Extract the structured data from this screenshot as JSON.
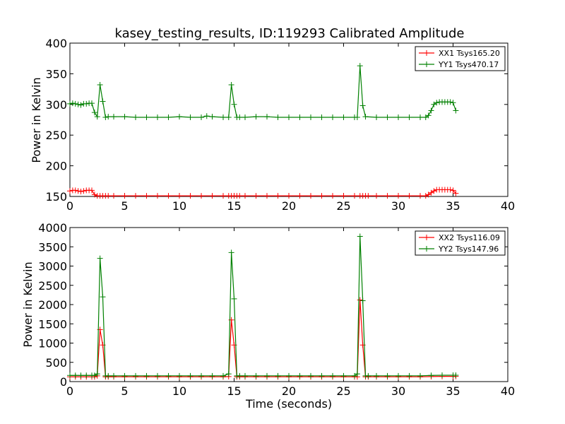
{
  "colors": {
    "xx": "#ff0000",
    "yy": "#008000",
    "axis": "#000000",
    "background": "#ffffff"
  },
  "chart_data": [
    {
      "type": "line",
      "title": "kasey_testing_results, ID:119293 Calibrated Amplitude",
      "xlabel": "",
      "ylabel": "Power in Kelvin",
      "xlim": [
        0,
        40
      ],
      "ylim": [
        150,
        400
      ],
      "xticks": [
        0,
        5,
        10,
        15,
        20,
        25,
        30,
        35,
        40
      ],
      "yticks": [
        150,
        200,
        250,
        300,
        350,
        400
      ],
      "legend_position": "top-right",
      "marker": "+",
      "grid": false,
      "series": [
        {
          "name": "XX1 Tsys165.20",
          "color": "#ff0000",
          "points": [
            [
              0.0,
              159
            ],
            [
              0.25,
              160
            ],
            [
              0.5,
              160
            ],
            [
              0.75,
              159
            ],
            [
              1.0,
              158
            ],
            [
              1.25,
              159
            ],
            [
              1.5,
              160
            ],
            [
              1.75,
              160
            ],
            [
              2.0,
              160
            ],
            [
              2.25,
              153
            ],
            [
              2.5,
              151
            ],
            [
              2.75,
              151
            ],
            [
              3.0,
              151
            ],
            [
              3.25,
              151
            ],
            [
              3.5,
              151
            ],
            [
              4.0,
              151
            ],
            [
              5.0,
              151
            ],
            [
              6.0,
              151
            ],
            [
              7.0,
              151
            ],
            [
              8.0,
              151
            ],
            [
              9.0,
              151
            ],
            [
              10.0,
              151
            ],
            [
              11.0,
              151
            ],
            [
              12.0,
              151
            ],
            [
              13.0,
              151
            ],
            [
              14.0,
              151
            ],
            [
              14.5,
              151
            ],
            [
              14.75,
              151
            ],
            [
              15.0,
              151
            ],
            [
              15.25,
              151
            ],
            [
              15.5,
              151
            ],
            [
              16.0,
              151
            ],
            [
              17.0,
              151
            ],
            [
              18.0,
              151
            ],
            [
              19.0,
              151
            ],
            [
              20.0,
              151
            ],
            [
              21.0,
              151
            ],
            [
              22.0,
              151
            ],
            [
              23.0,
              151
            ],
            [
              24.0,
              151
            ],
            [
              25.0,
              151
            ],
            [
              26.0,
              151
            ],
            [
              26.5,
              151
            ],
            [
              26.75,
              151
            ],
            [
              27.0,
              151
            ],
            [
              27.25,
              151
            ],
            [
              28.0,
              151
            ],
            [
              29.0,
              151
            ],
            [
              30.0,
              151
            ],
            [
              31.0,
              151
            ],
            [
              32.0,
              151
            ],
            [
              32.5,
              151
            ],
            [
              32.75,
              153
            ],
            [
              33.0,
              156
            ],
            [
              33.25,
              159
            ],
            [
              33.5,
              161
            ],
            [
              33.75,
              161
            ],
            [
              34.0,
              161
            ],
            [
              34.25,
              161
            ],
            [
              34.5,
              161
            ],
            [
              34.75,
              161
            ],
            [
              35.0,
              160
            ],
            [
              35.25,
              155
            ]
          ]
        },
        {
          "name": "YY1 Tsys470.17",
          "color": "#008000",
          "points": [
            [
              0.0,
              301
            ],
            [
              0.25,
              302
            ],
            [
              0.5,
              301
            ],
            [
              0.75,
              300
            ],
            [
              1.0,
              299
            ],
            [
              1.25,
              301
            ],
            [
              1.5,
              301
            ],
            [
              1.75,
              302
            ],
            [
              2.0,
              302
            ],
            [
              2.25,
              287
            ],
            [
              2.5,
              280
            ],
            [
              2.75,
              332
            ],
            [
              3.0,
              305
            ],
            [
              3.25,
              279
            ],
            [
              3.5,
              280
            ],
            [
              4.0,
              280
            ],
            [
              5.0,
              280
            ],
            [
              6.0,
              279
            ],
            [
              7.0,
              279
            ],
            [
              8.0,
              279
            ],
            [
              9.0,
              279
            ],
            [
              10.0,
              280
            ],
            [
              11.0,
              279
            ],
            [
              12.0,
              279
            ],
            [
              12.5,
              281
            ],
            [
              13.0,
              280
            ],
            [
              14.0,
              279
            ],
            [
              14.5,
              279
            ],
            [
              14.75,
              332
            ],
            [
              15.0,
              300
            ],
            [
              15.25,
              279
            ],
            [
              15.5,
              279
            ],
            [
              16.0,
              279
            ],
            [
              17.0,
              280
            ],
            [
              18.0,
              280
            ],
            [
              19.0,
              279
            ],
            [
              20.0,
              279
            ],
            [
              21.0,
              279
            ],
            [
              22.0,
              279
            ],
            [
              23.0,
              279
            ],
            [
              24.0,
              279
            ],
            [
              25.0,
              279
            ],
            [
              26.0,
              279
            ],
            [
              26.25,
              279
            ],
            [
              26.5,
              363
            ],
            [
              26.75,
              298
            ],
            [
              27.0,
              280
            ],
            [
              28.0,
              279
            ],
            [
              29.0,
              279
            ],
            [
              30.0,
              279
            ],
            [
              31.0,
              279
            ],
            [
              32.0,
              279
            ],
            [
              32.5,
              279
            ],
            [
              32.75,
              282
            ],
            [
              33.0,
              290
            ],
            [
              33.25,
              300
            ],
            [
              33.5,
              303
            ],
            [
              33.75,
              304
            ],
            [
              34.0,
              304
            ],
            [
              34.25,
              304
            ],
            [
              34.5,
              304
            ],
            [
              34.75,
              304
            ],
            [
              35.0,
              303
            ],
            [
              35.25,
              290
            ]
          ]
        }
      ]
    },
    {
      "type": "line",
      "title": "",
      "xlabel": "Time (seconds)",
      "ylabel": "Power in Kelvin",
      "xlim": [
        0,
        40
      ],
      "ylim": [
        0,
        4000
      ],
      "xticks": [
        0,
        5,
        10,
        15,
        20,
        25,
        30,
        35,
        40
      ],
      "yticks": [
        0,
        500,
        1000,
        1500,
        2000,
        2500,
        3000,
        3500,
        4000
      ],
      "legend_position": "top-right",
      "marker": "+",
      "grid": false,
      "series": [
        {
          "name": "XX2 Tsys116.09",
          "color": "#ff0000",
          "points": [
            [
              0.0,
              125
            ],
            [
              0.5,
              125
            ],
            [
              1.0,
              125
            ],
            [
              1.5,
              125
            ],
            [
              2.0,
              125
            ],
            [
              2.25,
              125
            ],
            [
              2.5,
              150
            ],
            [
              2.75,
              1350
            ],
            [
              3.0,
              950
            ],
            [
              3.25,
              125
            ],
            [
              3.5,
              125
            ],
            [
              4.0,
              125
            ],
            [
              5.0,
              125
            ],
            [
              6.0,
              125
            ],
            [
              7.0,
              125
            ],
            [
              8.0,
              125
            ],
            [
              9.0,
              125
            ],
            [
              10.0,
              125
            ],
            [
              11.0,
              125
            ],
            [
              12.0,
              125
            ],
            [
              13.0,
              125
            ],
            [
              14.0,
              125
            ],
            [
              14.5,
              130
            ],
            [
              14.75,
              1600
            ],
            [
              15.0,
              950
            ],
            [
              15.25,
              125
            ],
            [
              15.5,
              125
            ],
            [
              16.0,
              125
            ],
            [
              17.0,
              125
            ],
            [
              18.0,
              125
            ],
            [
              19.0,
              125
            ],
            [
              20.0,
              125
            ],
            [
              21.0,
              125
            ],
            [
              22.0,
              125
            ],
            [
              23.0,
              125
            ],
            [
              24.0,
              125
            ],
            [
              25.0,
              125
            ],
            [
              26.0,
              125
            ],
            [
              26.25,
              125
            ],
            [
              26.5,
              2120
            ],
            [
              26.75,
              950
            ],
            [
              27.0,
              125
            ],
            [
              27.25,
              125
            ],
            [
              28.0,
              125
            ],
            [
              29.0,
              125
            ],
            [
              30.0,
              125
            ],
            [
              31.0,
              125
            ],
            [
              32.0,
              125
            ],
            [
              33.0,
              130
            ],
            [
              34.0,
              135
            ],
            [
              35.0,
              135
            ],
            [
              35.25,
              135
            ]
          ]
        },
        {
          "name": "YY2 Tsys147.96",
          "color": "#008000",
          "points": [
            [
              0.0,
              160
            ],
            [
              0.5,
              160
            ],
            [
              1.0,
              160
            ],
            [
              1.5,
              160
            ],
            [
              2.0,
              160
            ],
            [
              2.25,
              160
            ],
            [
              2.5,
              200
            ],
            [
              2.75,
              3200
            ],
            [
              3.0,
              2200
            ],
            [
              3.25,
              150
            ],
            [
              3.5,
              150
            ],
            [
              4.0,
              150
            ],
            [
              5.0,
              150
            ],
            [
              6.0,
              150
            ],
            [
              7.0,
              150
            ],
            [
              8.0,
              150
            ],
            [
              9.0,
              150
            ],
            [
              10.0,
              150
            ],
            [
              11.0,
              150
            ],
            [
              12.0,
              150
            ],
            [
              13.0,
              150
            ],
            [
              14.0,
              150
            ],
            [
              14.5,
              200
            ],
            [
              14.75,
              3350
            ],
            [
              15.0,
              2150
            ],
            [
              15.25,
              150
            ],
            [
              15.5,
              150
            ],
            [
              16.0,
              150
            ],
            [
              17.0,
              150
            ],
            [
              18.0,
              150
            ],
            [
              19.0,
              150
            ],
            [
              20.0,
              150
            ],
            [
              21.0,
              150
            ],
            [
              22.0,
              150
            ],
            [
              23.0,
              150
            ],
            [
              24.0,
              150
            ],
            [
              25.0,
              150
            ],
            [
              26.0,
              150
            ],
            [
              26.25,
              200
            ],
            [
              26.5,
              3770
            ],
            [
              26.75,
              2100
            ],
            [
              27.0,
              150
            ],
            [
              27.25,
              150
            ],
            [
              28.0,
              150
            ],
            [
              29.0,
              150
            ],
            [
              30.0,
              150
            ],
            [
              31.0,
              150
            ],
            [
              32.0,
              150
            ],
            [
              33.0,
              160
            ],
            [
              34.0,
              165
            ],
            [
              35.0,
              165
            ],
            [
              35.25,
              165
            ]
          ]
        }
      ]
    }
  ]
}
